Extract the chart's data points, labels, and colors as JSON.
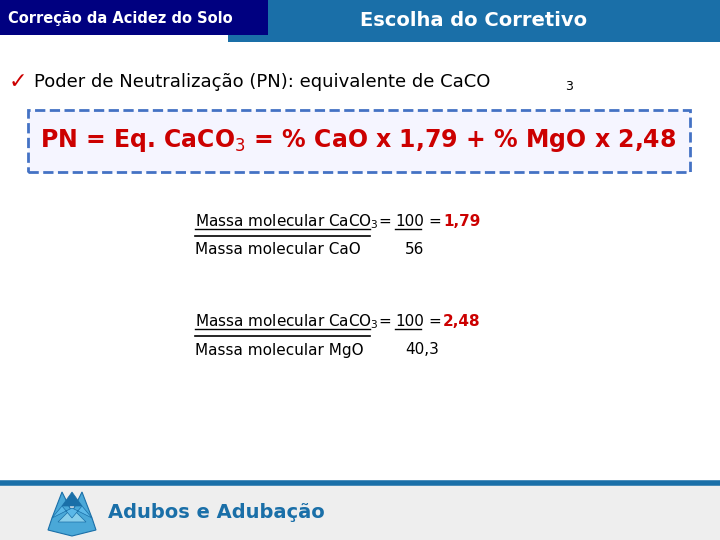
{
  "title_bar_text": "Correção da Acidez do Solo",
  "subtitle_text": "Escolha do Corretivo",
  "bullet_text": "Poder de Neutralização (PN): equivalente de CaCO",
  "bullet_sub": "3",
  "footer_text": "Adubos e Adubação",
  "bg_color": "#ffffff",
  "title_bar_color": "#000080",
  "subtitle_bar_color": "#1a6fa8",
  "title_text_color": "#ffffff",
  "subtitle_text_color": "#ffffff",
  "bullet_color": "#000000",
  "checkmark_color": "#cc0000",
  "formula_color": "#cc0000",
  "formula_box_border": "#4472c4",
  "formula_box_fill": "#f5f5ff",
  "frac_color": "#000000",
  "frac_result_color": "#cc0000",
  "footer_color": "#1a6fa8",
  "footer_bar_color": "#1a6fa8"
}
